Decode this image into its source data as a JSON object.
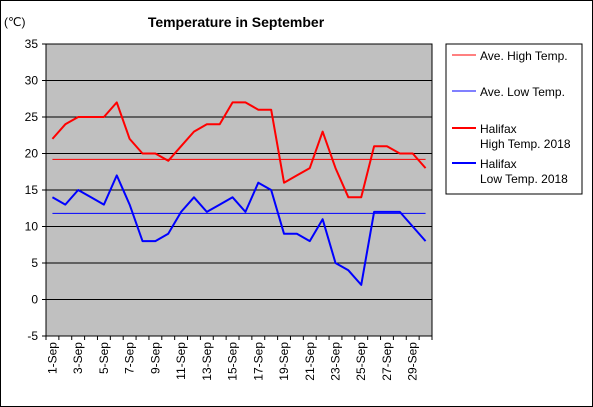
{
  "chart_data": {
    "type": "line",
    "title": "Temperature in September",
    "unit_label": "(℃)",
    "ylim": [
      -5,
      35
    ],
    "y_ticks": [
      "35",
      "30",
      "25",
      "20",
      "15",
      "10",
      "5",
      "0",
      "-5"
    ],
    "y_tick_values": [
      35,
      30,
      25,
      20,
      15,
      10,
      5,
      0,
      -5
    ],
    "categories": [
      "1-Sep",
      "2-Sep",
      "3-Sep",
      "4-Sep",
      "5-Sep",
      "6-Sep",
      "7-Sep",
      "8-Sep",
      "9-Sep",
      "10-Sep",
      "11-Sep",
      "12-Sep",
      "13-Sep",
      "14-Sep",
      "15-Sep",
      "16-Sep",
      "17-Sep",
      "18-Sep",
      "19-Sep",
      "20-Sep",
      "21-Sep",
      "22-Sep",
      "23-Sep",
      "24-Sep",
      "25-Sep",
      "26-Sep",
      "27-Sep",
      "28-Sep",
      "29-Sep",
      "30-Sep"
    ],
    "x_tick_labels_shown": [
      "1-Sep",
      "3-Sep",
      "5-Sep",
      "7-Sep",
      "9-Sep",
      "11-Sep",
      "13-Sep",
      "15-Sep",
      "17-Sep",
      "19-Sep",
      "21-Sep",
      "23-Sep",
      "25-Sep",
      "27-Sep",
      "29-Sep"
    ],
    "grid": true,
    "plot_background": "#c0c0c0",
    "legend_position": "right",
    "series": [
      {
        "name": "Ave. High Temp.",
        "legend_lines": [
          "Ave. High Temp."
        ],
        "color": "#ff0000",
        "width": "thin",
        "values": [
          19.2,
          19.2,
          19.2,
          19.2,
          19.2,
          19.2,
          19.2,
          19.2,
          19.2,
          19.2,
          19.2,
          19.2,
          19.2,
          19.2,
          19.2,
          19.2,
          19.2,
          19.2,
          19.2,
          19.2,
          19.2,
          19.2,
          19.2,
          19.2,
          19.2,
          19.2,
          19.2,
          19.2,
          19.2,
          19.2
        ]
      },
      {
        "name": "Ave. Low Temp.",
        "legend_lines": [
          "Ave. Low Temp."
        ],
        "color": "#0000ff",
        "width": "thin",
        "values": [
          11.8,
          11.8,
          11.8,
          11.8,
          11.8,
          11.8,
          11.8,
          11.8,
          11.8,
          11.8,
          11.8,
          11.8,
          11.8,
          11.8,
          11.8,
          11.8,
          11.8,
          11.8,
          11.8,
          11.8,
          11.8,
          11.8,
          11.8,
          11.8,
          11.8,
          11.8,
          11.8,
          11.8,
          11.8,
          11.8
        ]
      },
      {
        "name": "Halifax High Temp. 2018",
        "legend_lines": [
          "Halifax",
          "High Temp. 2018"
        ],
        "color": "#ff0000",
        "width": "thick",
        "values": [
          22,
          24,
          25,
          25,
          25,
          27,
          22,
          20,
          20,
          19,
          21,
          23,
          24,
          24,
          27,
          27,
          26,
          26,
          16,
          17,
          18,
          23,
          18,
          14,
          14,
          21,
          21,
          20,
          20,
          18
        ]
      },
      {
        "name": "Halifax Low Temp. 2018",
        "legend_lines": [
          "Halifax",
          "Low Temp. 2018"
        ],
        "color": "#0000ff",
        "width": "thick",
        "values": [
          14,
          13,
          15,
          14,
          13,
          17,
          13,
          8,
          8,
          9,
          12,
          14,
          12,
          13,
          14,
          12,
          16,
          15,
          9,
          9,
          8,
          11,
          5,
          4,
          2,
          12,
          12,
          12,
          10,
          8
        ]
      }
    ]
  }
}
